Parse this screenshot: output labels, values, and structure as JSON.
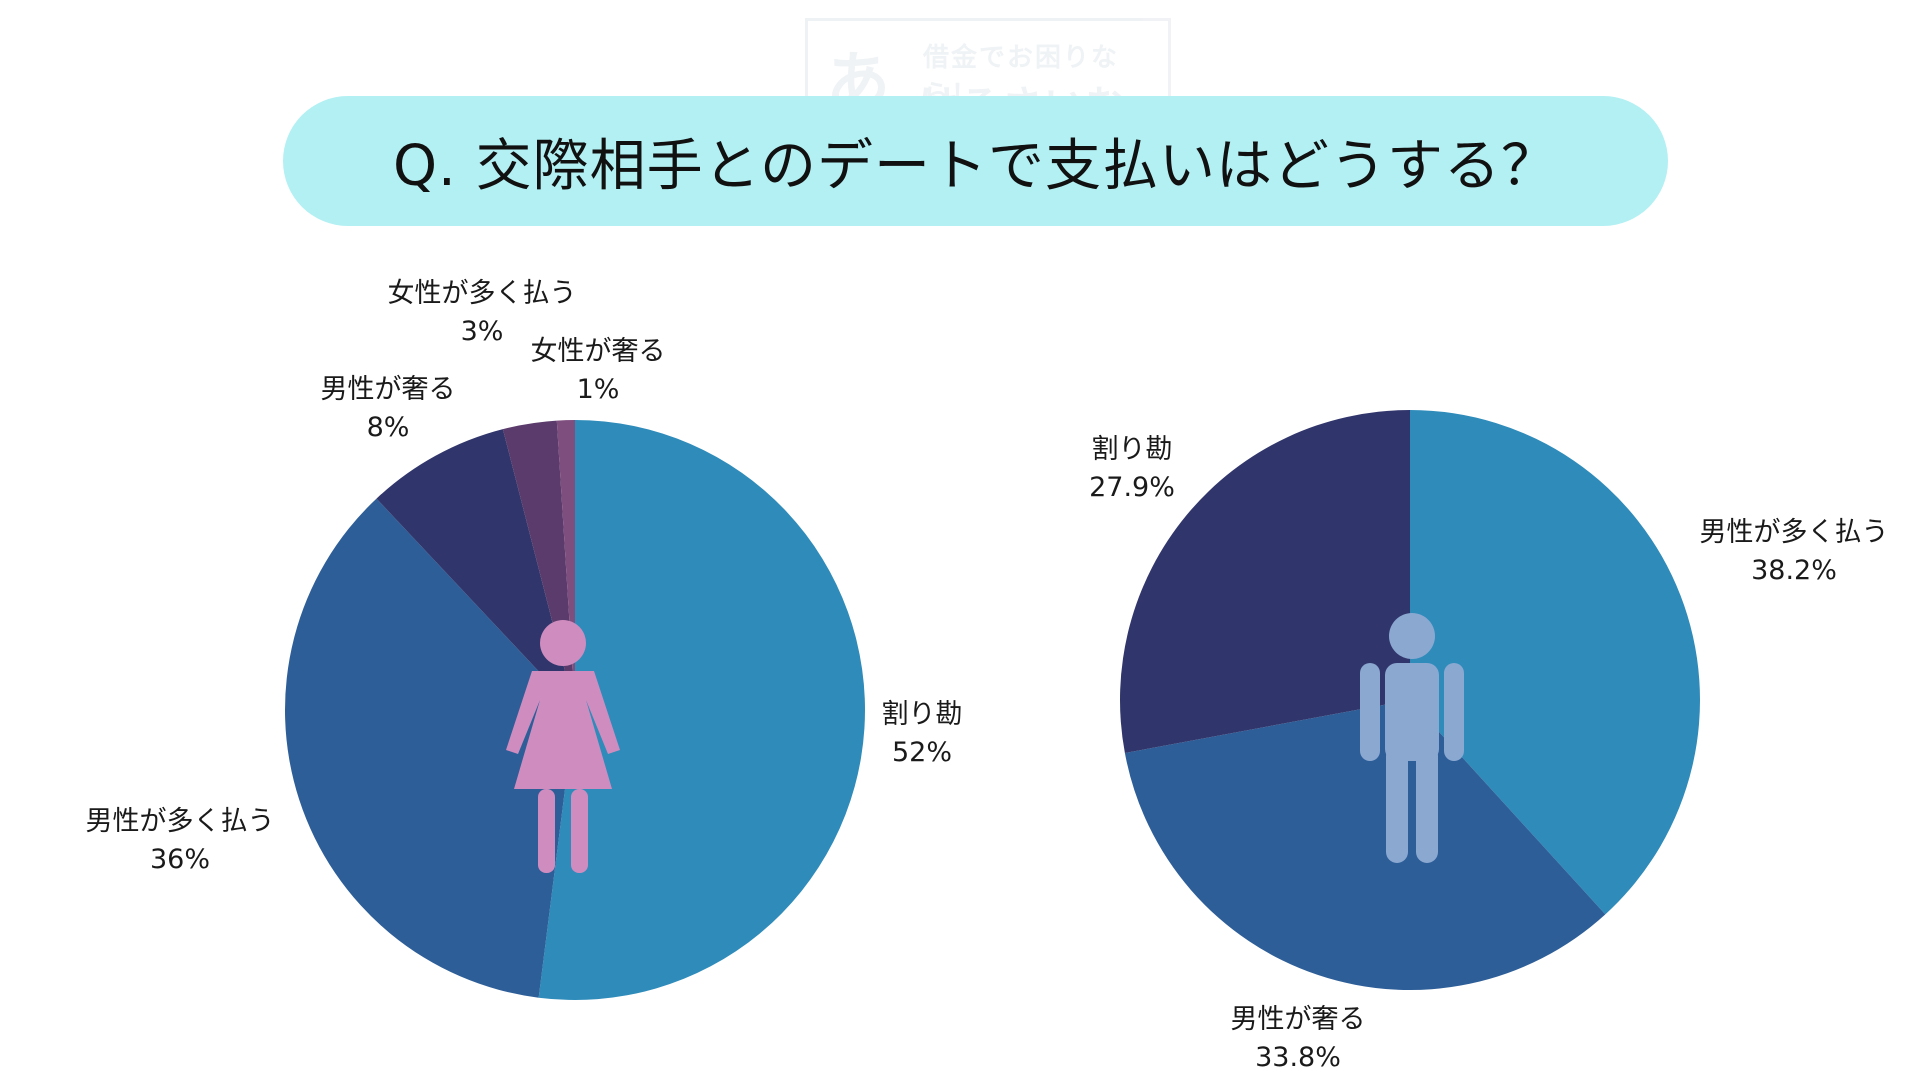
{
  "watermark": {
    "big": "あ",
    "small": "借金でお困りなら！",
    "brand": "けるさいむ"
  },
  "title": "Q. 交際相手とのデートで支払いはどうする？",
  "colors": {
    "title_bg": "#b2f0f3",
    "woman_icon": "#cf8cbf",
    "man_icon": "#8ba8d1",
    "slice_split": "#2e8bba",
    "slice_man_more": "#2d5e98",
    "slice_man_treat": "#30356b",
    "slice_woman_more": "#5a3b6b",
    "slice_woman_treat": "#7d4e7e"
  },
  "icons": {
    "woman": "woman-icon",
    "man": "man-icon"
  },
  "chart_data": [
    {
      "type": "pie",
      "title": "",
      "series": [
        {
          "label": "割り勘",
          "value": 52,
          "value_label": "52%",
          "color": "#2e8bba"
        },
        {
          "label": "男性が多く払う",
          "value": 36,
          "value_label": "36%",
          "color": "#2d5e98"
        },
        {
          "label": "男性が奢る",
          "value": 8,
          "value_label": "8%",
          "color": "#30356b"
        },
        {
          "label": "女性が多く払う",
          "value": 3,
          "value_label": "3%",
          "color": "#5a3b6b"
        },
        {
          "label": "女性が奢る",
          "value": 1,
          "value_label": "1%",
          "color": "#7d4e7e"
        }
      ]
    },
    {
      "type": "pie",
      "title": "",
      "series": [
        {
          "label": "男性が多く払う",
          "value": 38.2,
          "value_label": "38.2%",
          "color": "#2e8bba"
        },
        {
          "label": "男性が奢る",
          "value": 33.8,
          "value_label": "33.8%",
          "color": "#2d5e98"
        },
        {
          "label": "割り勘",
          "value": 27.9,
          "value_label": "27.9%",
          "color": "#30356b"
        }
      ]
    }
  ]
}
